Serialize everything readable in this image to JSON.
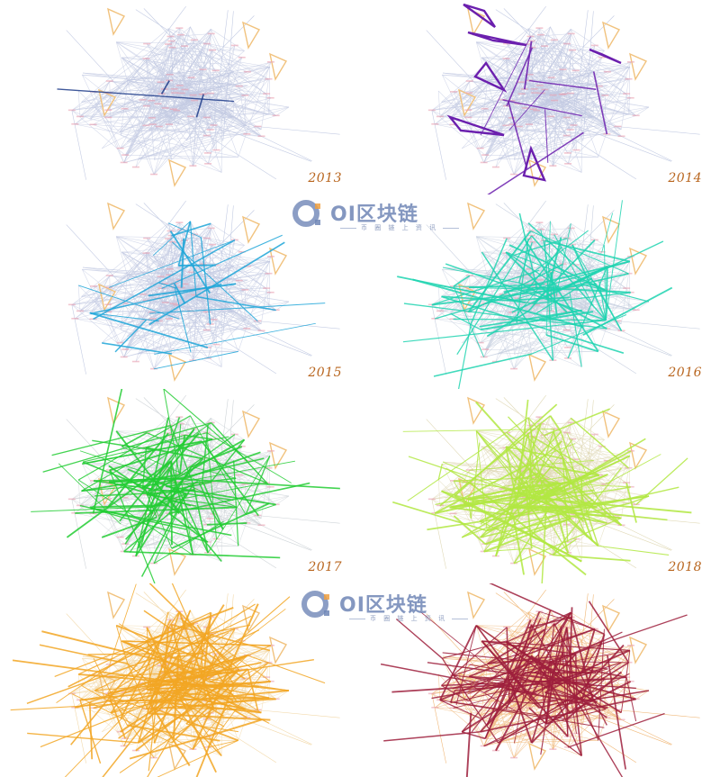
{
  "panels": [
    {
      "year": "2013",
      "highlight": "#1f3c8a",
      "background": "#c3cbe3",
      "density": 1.0,
      "hl_count": 3
    },
    {
      "year": "2014",
      "highlight": "#6b1fae",
      "background": "#c3cbe3",
      "density": 1.0,
      "hl_count": 10
    },
    {
      "year": "2015",
      "highlight": "#1ea6d8",
      "background": "#c3cbe3",
      "density": 1.0,
      "hl_count": 28
    },
    {
      "year": "2016",
      "highlight": "#1fd4b0",
      "background": "#c8d0e0",
      "density": 1.0,
      "hl_count": 90
    },
    {
      "year": "2017",
      "highlight": "#22cc33",
      "background": "#cfd4d8",
      "density": 1.0,
      "hl_count": 120
    },
    {
      "year": "2018",
      "highlight": "#b2e842",
      "background": "#e0d9b6",
      "density": 1.0,
      "hl_count": 150
    },
    {
      "year": "",
      "highlight": "#f2a623",
      "background": "#f2d8a8",
      "density": 1.2,
      "hl_count": 170
    },
    {
      "year": "",
      "highlight": "#9e1f3c",
      "background": "#f0b777",
      "density": 1.2,
      "hl_count": 150
    }
  ],
  "triangle_color": "#f1c27d",
  "watermark": {
    "brand": "OI区块链",
    "slogan": "币 圈 链 上 资 讯",
    "color": "#6f86b6"
  }
}
